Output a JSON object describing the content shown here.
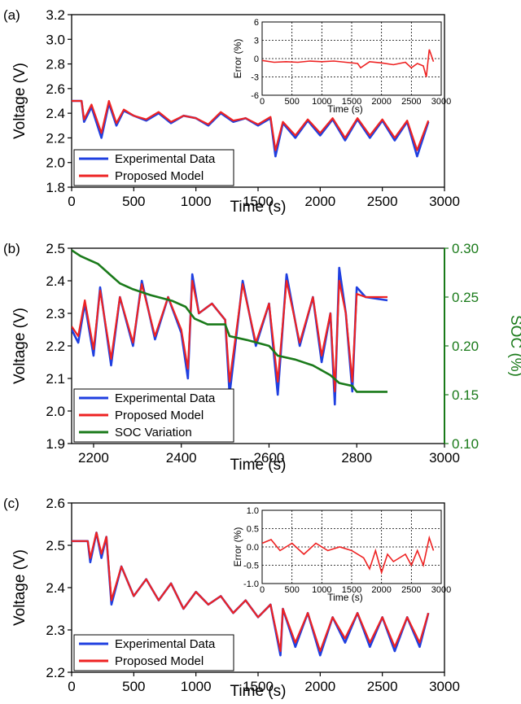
{
  "colors": {
    "experimental": "#1f3fe0",
    "model": "#ee2222",
    "soc": "#1a7a1a",
    "axis": "#000000"
  },
  "chart_data": [
    {
      "type": "line",
      "panel_label": "(a)",
      "xlabel": "Time (s)",
      "ylabel": "Voltage (V)",
      "xlim": [
        0,
        3000
      ],
      "ylim": [
        1.8,
        3.2
      ],
      "xticks": [
        0,
        500,
        1000,
        1500,
        2000,
        2500,
        3000
      ],
      "yticks": [
        1.8,
        2.0,
        2.2,
        2.4,
        2.6,
        2.8,
        3.0,
        3.2
      ],
      "ytick_labels": [
        "1.8",
        "2.0",
        "2.2",
        "2.4",
        "2.6",
        "2.8",
        "3.0",
        "3.2"
      ],
      "legend": [
        "Experimental Data",
        "Proposed Model"
      ],
      "legend_position": "bottom-left",
      "series": [
        {
          "name": "Experimental Data",
          "x": [
            0,
            80,
            100,
            160,
            240,
            300,
            360,
            420,
            500,
            600,
            700,
            800,
            900,
            1000,
            1100,
            1200,
            1300,
            1400,
            1500,
            1600,
            1640,
            1700,
            1800,
            1900,
            2000,
            2100,
            2200,
            2300,
            2400,
            2500,
            2600,
            2700,
            2780,
            2870
          ],
          "y": [
            2.5,
            2.5,
            2.33,
            2.45,
            2.2,
            2.48,
            2.3,
            2.42,
            2.38,
            2.34,
            2.4,
            2.32,
            2.38,
            2.36,
            2.3,
            2.4,
            2.33,
            2.36,
            2.3,
            2.36,
            2.05,
            2.32,
            2.2,
            2.34,
            2.22,
            2.35,
            2.18,
            2.35,
            2.2,
            2.34,
            2.18,
            2.33,
            2.05,
            2.33
          ]
        },
        {
          "name": "Proposed Model",
          "x": [
            0,
            80,
            100,
            160,
            240,
            300,
            360,
            420,
            500,
            600,
            700,
            800,
            900,
            1000,
            1100,
            1200,
            1300,
            1400,
            1500,
            1600,
            1640,
            1700,
            1800,
            1900,
            2000,
            2100,
            2200,
            2300,
            2400,
            2500,
            2600,
            2700,
            2780,
            2870
          ],
          "y": [
            2.5,
            2.5,
            2.35,
            2.47,
            2.24,
            2.5,
            2.32,
            2.43,
            2.38,
            2.35,
            2.41,
            2.33,
            2.38,
            2.36,
            2.31,
            2.41,
            2.34,
            2.36,
            2.31,
            2.37,
            2.1,
            2.33,
            2.22,
            2.35,
            2.24,
            2.36,
            2.2,
            2.36,
            2.22,
            2.35,
            2.2,
            2.34,
            2.1,
            2.34
          ]
        }
      ],
      "inset": {
        "ylabel": "Error (%)",
        "xlabel": "Time (s)",
        "xlim": [
          0,
          3000
        ],
        "ylim": [
          -6,
          6
        ],
        "xticks": [
          0,
          500,
          1000,
          1500,
          2000,
          2500,
          3000
        ],
        "yticks": [
          -6,
          -3,
          0,
          3,
          6
        ],
        "ytick_labels": [
          "-6",
          "-3",
          "0",
          "3",
          "6"
        ],
        "grid": true,
        "series": [
          {
            "name": "Error",
            "x": [
              0,
              200,
              400,
              600,
              800,
              1000,
              1200,
              1400,
              1600,
              1650,
              1800,
              2000,
              2200,
              2400,
              2500,
              2600,
              2700,
              2750,
              2800,
              2870
            ],
            "y": [
              -0.3,
              -0.6,
              -0.5,
              -0.6,
              -0.4,
              -0.5,
              -0.4,
              -0.6,
              -0.8,
              -1.5,
              -0.5,
              -0.7,
              -1.0,
              -0.6,
              -1.5,
              -0.8,
              -1.2,
              -3.0,
              1.5,
              -0.5
            ]
          }
        ]
      }
    },
    {
      "type": "line",
      "panel_label": "(b)",
      "xlabel": "Time (s)",
      "ylabel": "Voltage (V)",
      "y2label": "SOC (%)",
      "xlim": [
        2150,
        3000
      ],
      "ylim": [
        1.9,
        2.5
      ],
      "y2lim": [
        0.1,
        0.3
      ],
      "xticks": [
        2200,
        2400,
        2600,
        2800,
        3000
      ],
      "yticks": [
        1.9,
        2.0,
        2.1,
        2.2,
        2.3,
        2.4,
        2.5
      ],
      "ytick_labels": [
        "1.9",
        "2.0",
        "2.1",
        "2.2",
        "2.3",
        "2.4",
        "2.5"
      ],
      "y2ticks": [
        0.1,
        0.15,
        0.2,
        0.25,
        0.3
      ],
      "y2tick_labels": [
        "0.10",
        "0.15",
        "0.20",
        "0.25",
        "0.30"
      ],
      "legend": [
        "Experimental Data",
        "Proposed Model",
        "SOC Variation"
      ],
      "legend_position": "bottom-left",
      "series": [
        {
          "name": "Experimental Data",
          "axis": "left",
          "x": [
            2150,
            2165,
            2180,
            2200,
            2215,
            2240,
            2260,
            2290,
            2310,
            2340,
            2370,
            2400,
            2415,
            2425,
            2440,
            2470,
            2500,
            2510,
            2540,
            2570,
            2600,
            2620,
            2640,
            2670,
            2700,
            2720,
            2740,
            2750,
            2760,
            2775,
            2790,
            2800,
            2820,
            2870
          ],
          "y": [
            2.25,
            2.21,
            2.33,
            2.17,
            2.38,
            2.14,
            2.35,
            2.2,
            2.4,
            2.22,
            2.35,
            2.24,
            2.1,
            2.42,
            2.3,
            2.33,
            2.28,
            2.05,
            2.4,
            2.2,
            2.33,
            2.05,
            2.42,
            2.2,
            2.35,
            2.15,
            2.3,
            2.02,
            2.44,
            2.3,
            2.06,
            2.38,
            2.35,
            2.34
          ]
        },
        {
          "name": "Proposed Model",
          "axis": "left",
          "x": [
            2150,
            2165,
            2180,
            2200,
            2215,
            2240,
            2260,
            2290,
            2310,
            2340,
            2370,
            2400,
            2415,
            2425,
            2440,
            2470,
            2500,
            2510,
            2540,
            2570,
            2600,
            2620,
            2640,
            2670,
            2700,
            2720,
            2740,
            2750,
            2760,
            2775,
            2790,
            2800,
            2820,
            2870
          ],
          "y": [
            2.26,
            2.23,
            2.34,
            2.19,
            2.37,
            2.16,
            2.35,
            2.21,
            2.39,
            2.23,
            2.35,
            2.25,
            2.13,
            2.4,
            2.3,
            2.33,
            2.28,
            2.09,
            2.39,
            2.21,
            2.33,
            2.09,
            2.4,
            2.21,
            2.35,
            2.17,
            2.3,
            2.06,
            2.4,
            2.3,
            2.09,
            2.36,
            2.35,
            2.35
          ]
        },
        {
          "name": "SOC Variation",
          "axis": "right",
          "x": [
            2150,
            2170,
            2190,
            2210,
            2240,
            2260,
            2290,
            2330,
            2380,
            2410,
            2430,
            2460,
            2500,
            2510,
            2550,
            2600,
            2620,
            2660,
            2700,
            2740,
            2760,
            2790,
            2800,
            2870
          ],
          "y": [
            0.298,
            0.292,
            0.288,
            0.284,
            0.272,
            0.264,
            0.258,
            0.252,
            0.246,
            0.24,
            0.228,
            0.222,
            0.222,
            0.21,
            0.206,
            0.2,
            0.19,
            0.186,
            0.18,
            0.17,
            0.162,
            0.159,
            0.153,
            0.153
          ]
        }
      ]
    },
    {
      "type": "line",
      "panel_label": "(c)",
      "xlabel": "Time (s)",
      "ylabel": "Voltage (V)",
      "xlim": [
        0,
        3000
      ],
      "ylim": [
        2.2,
        2.6
      ],
      "xticks": [
        0,
        500,
        1000,
        1500,
        2000,
        2500,
        3000
      ],
      "yticks": [
        2.2,
        2.3,
        2.4,
        2.5,
        2.6
      ],
      "ytick_labels": [
        "2.2",
        "2.3",
        "2.4",
        "2.5",
        "2.6"
      ],
      "legend": [
        "Experimental Data",
        "Proposed Model"
      ],
      "legend_position": "bottom-left",
      "series": [
        {
          "name": "Experimental Data",
          "x": [
            0,
            130,
            150,
            200,
            240,
            280,
            320,
            400,
            500,
            600,
            700,
            800,
            900,
            1000,
            1100,
            1200,
            1300,
            1400,
            1500,
            1600,
            1680,
            1700,
            1800,
            1900,
            2000,
            2100,
            2200,
            2300,
            2400,
            2500,
            2600,
            2700,
            2800,
            2870
          ],
          "y": [
            2.51,
            2.51,
            2.46,
            2.53,
            2.47,
            2.52,
            2.36,
            2.45,
            2.38,
            2.42,
            2.37,
            2.41,
            2.35,
            2.39,
            2.36,
            2.38,
            2.34,
            2.37,
            2.33,
            2.36,
            2.24,
            2.35,
            2.26,
            2.34,
            2.24,
            2.33,
            2.27,
            2.34,
            2.26,
            2.33,
            2.25,
            2.33,
            2.26,
            2.34
          ]
        },
        {
          "name": "Proposed Model",
          "x": [
            0,
            130,
            150,
            200,
            240,
            280,
            320,
            400,
            500,
            600,
            700,
            800,
            900,
            1000,
            1100,
            1200,
            1300,
            1400,
            1500,
            1600,
            1680,
            1700,
            1800,
            1900,
            2000,
            2100,
            2200,
            2300,
            2400,
            2500,
            2600,
            2700,
            2800,
            2870
          ],
          "y": [
            2.51,
            2.51,
            2.47,
            2.53,
            2.48,
            2.52,
            2.37,
            2.45,
            2.38,
            2.42,
            2.37,
            2.41,
            2.35,
            2.39,
            2.36,
            2.38,
            2.34,
            2.37,
            2.33,
            2.36,
            2.25,
            2.35,
            2.27,
            2.34,
            2.25,
            2.33,
            2.28,
            2.34,
            2.27,
            2.33,
            2.26,
            2.33,
            2.27,
            2.34
          ]
        }
      ],
      "inset": {
        "ylabel": "Error (%)",
        "xlabel": "Time (s)",
        "xlim": [
          0,
          3000
        ],
        "ylim": [
          -1.0,
          1.0
        ],
        "xticks": [
          0,
          500,
          1000,
          1500,
          2000,
          2500,
          3000
        ],
        "yticks": [
          -1.0,
          -0.5,
          0.0,
          0.5,
          1.0
        ],
        "ytick_labels": [
          "-1.0",
          "-0.5",
          "0.0",
          "0.5",
          "1.0"
        ],
        "grid": true,
        "series": [
          {
            "name": "Error",
            "x": [
              0,
              150,
              300,
              500,
              700,
              900,
              1100,
              1300,
              1500,
              1700,
              1800,
              1900,
              2000,
              2100,
              2200,
              2400,
              2500,
              2600,
              2700,
              2800,
              2870
            ],
            "y": [
              0.1,
              0.2,
              -0.1,
              0.1,
              -0.2,
              0.1,
              -0.1,
              0.0,
              -0.1,
              -0.3,
              -0.6,
              -0.1,
              -0.7,
              -0.2,
              -0.4,
              -0.2,
              -0.5,
              -0.1,
              -0.5,
              0.25,
              -0.1
            ]
          }
        ]
      }
    }
  ]
}
